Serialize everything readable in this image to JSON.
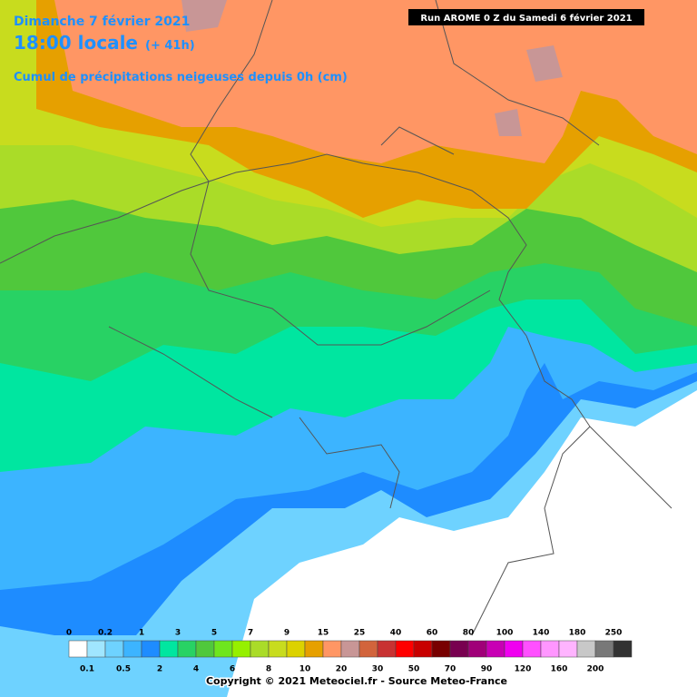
{
  "header": {
    "date": "Dimanche 7 février 2021",
    "time": "18:00 locale",
    "lead": "(+ 41h)",
    "subtitle": "Cumul de précipitations neigeuses depuis 0h (cm)",
    "run": "Run AROME 0 Z du Samedi 6 février 2021"
  },
  "legend": {
    "items": [
      {
        "label": "0",
        "color": "#ffffff"
      },
      {
        "label": "0.1",
        "color": "#a0e6ff"
      },
      {
        "label": "0.2",
        "color": "#6ed2ff"
      },
      {
        "label": "0.5",
        "color": "#3cb4ff"
      },
      {
        "label": "1",
        "color": "#1e8cff"
      },
      {
        "label": "2",
        "color": "#00e6a0"
      },
      {
        "label": "3",
        "color": "#28d264"
      },
      {
        "label": "4",
        "color": "#50c83c"
      },
      {
        "label": "5",
        "color": "#6ee61e"
      },
      {
        "label": "6",
        "color": "#96f000"
      },
      {
        "label": "7",
        "color": "#aadc28"
      },
      {
        "label": "8",
        "color": "#c8dc1e"
      },
      {
        "label": "9",
        "color": "#dcd200"
      },
      {
        "label": "10",
        "color": "#e6a000"
      },
      {
        "label": "15",
        "color": "#ff9664"
      },
      {
        "label": "20",
        "color": "#c89696"
      },
      {
        "label": "25",
        "color": "#d2643c"
      },
      {
        "label": "30",
        "color": "#c83232"
      },
      {
        "label": "40",
        "color": "#ff0000"
      },
      {
        "label": "50",
        "color": "#c80000"
      },
      {
        "label": "60",
        "color": "#780000"
      },
      {
        "label": "70",
        "color": "#780050"
      },
      {
        "label": "80",
        "color": "#a00078"
      },
      {
        "label": "90",
        "color": "#c800b4"
      },
      {
        "label": "100",
        "color": "#f000f0"
      },
      {
        "label": "120",
        "color": "#ff50ff"
      },
      {
        "label": "140",
        "color": "#ff96ff"
      },
      {
        "label": "160",
        "color": "#ffb4ff"
      },
      {
        "label": "180",
        "color": "#c8c8c8"
      },
      {
        "label": "200",
        "color": "#787878"
      },
      {
        "label": "250",
        "color": "#323232"
      }
    ]
  },
  "footer": {
    "copyright": "Copyright © 2021 Meteociel.fr - Source Meteo-France"
  }
}
